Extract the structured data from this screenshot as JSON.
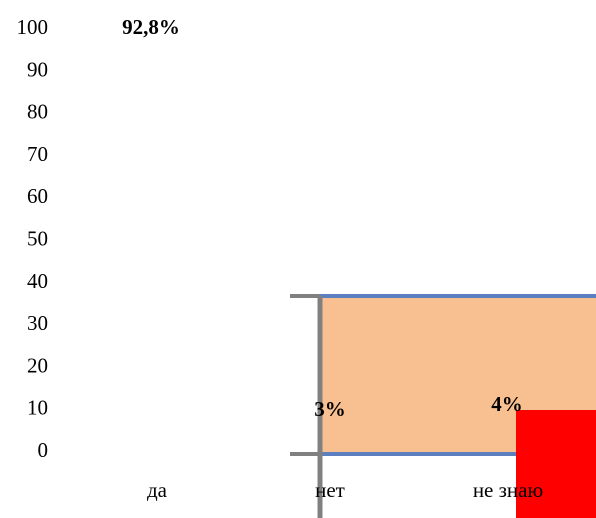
{
  "chart_data": {
    "type": "bar",
    "title": "",
    "xlabel": "",
    "ylabel": "",
    "ylim": [
      0,
      100
    ],
    "y_ticks": [
      "0",
      "10",
      "20",
      "30",
      "40",
      "50",
      "60",
      "70",
      "80",
      "90",
      "100"
    ],
    "categories": [
      "да",
      "нет",
      "не знаю"
    ],
    "values": [
      92.8,
      3,
      4
    ],
    "data_labels": [
      "92,8%",
      "3%",
      "4%"
    ],
    "grid": false,
    "legend": "none",
    "colors": {
      "bar_highlight": "#ff0000",
      "panel_fill": "#f8c090",
      "panel_edge": "#5b7fbf",
      "axis_grey": "#808080"
    }
  }
}
